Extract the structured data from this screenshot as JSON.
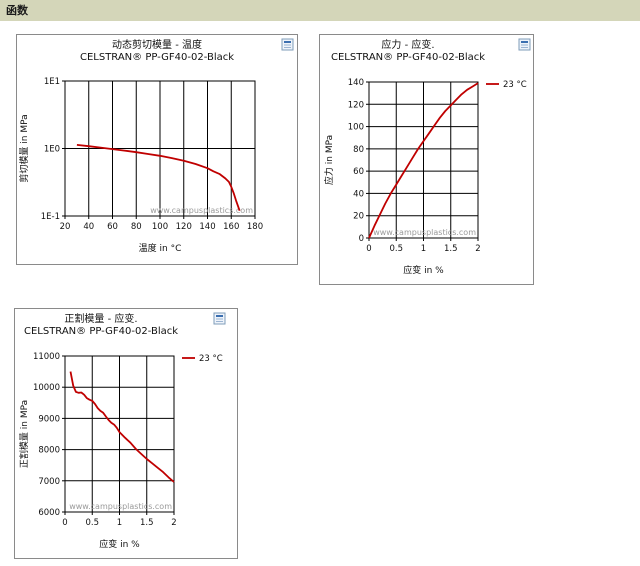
{
  "section": {
    "title": "函数"
  },
  "icon_name": "chart-export-icon",
  "watermark": "www.campusplastics.com",
  "chart_data": [
    {
      "type": "line",
      "title": "动态剪切模量 - 温度",
      "subtitle": "CELSTRAN® PP-GF40-02-Black",
      "xlabel": "温度 in °C",
      "ylabel": "剪切模量 in MPa",
      "yscale": "log",
      "xlim": [
        20,
        180
      ],
      "ylim": [
        0.1,
        10
      ],
      "x_ticks": [
        "20",
        "40",
        "60",
        "80",
        "100",
        "120",
        "140",
        "160",
        "180"
      ],
      "y_ticks": [
        "1E-1",
        "1E0",
        "1E1"
      ],
      "grid": true,
      "legend": "none",
      "series": [
        {
          "color": "#c00000",
          "x": [
            30,
            40,
            50,
            60,
            70,
            80,
            90,
            100,
            110,
            120,
            130,
            140,
            145,
            150,
            155,
            158,
            160,
            162,
            164,
            166,
            167
          ],
          "y": [
            1.13,
            1.08,
            1.03,
            0.98,
            0.93,
            0.88,
            0.83,
            0.78,
            0.72,
            0.66,
            0.59,
            0.51,
            0.46,
            0.42,
            0.36,
            0.32,
            0.27,
            0.22,
            0.17,
            0.135,
            0.12
          ]
        }
      ]
    },
    {
      "type": "line",
      "title": "应力 - 应变.",
      "subtitle": "CELSTRAN® PP-GF40-02-Black",
      "xlabel": "应变 in %",
      "ylabel": "应力 in MPa",
      "xlim": [
        0,
        2
      ],
      "ylim": [
        0,
        140
      ],
      "x_ticks": [
        "0",
        "0.5",
        "1",
        "1.5",
        "2"
      ],
      "y_ticks": [
        "0",
        "20",
        "40",
        "60",
        "80",
        "100",
        "120",
        "140"
      ],
      "grid": true,
      "legend": "right",
      "series": [
        {
          "name": "23 °C",
          "color": "#c00000",
          "x": [
            0,
            0.1,
            0.2,
            0.3,
            0.4,
            0.5,
            0.6,
            0.7,
            0.8,
            0.9,
            1.0,
            1.1,
            1.2,
            1.3,
            1.4,
            1.5,
            1.6,
            1.7,
            1.8,
            1.9,
            2.0
          ],
          "y": [
            0,
            11,
            21,
            31,
            40,
            48,
            56,
            64,
            72,
            80,
            87,
            94,
            101,
            108,
            114,
            119,
            124,
            129,
            133,
            136,
            139
          ]
        }
      ]
    },
    {
      "type": "line",
      "title": "正割模量 - 应变.",
      "subtitle": "CELSTRAN® PP-GF40-02-Black",
      "xlabel": "应变 in %",
      "ylabel": "正割模量 in MPa",
      "xlim": [
        0,
        2
      ],
      "ylim": [
        6000,
        11000
      ],
      "x_ticks": [
        "0",
        "0.5",
        "1",
        "1.5",
        "2"
      ],
      "y_ticks": [
        "6000",
        "7000",
        "8000",
        "9000",
        "10000",
        "11000"
      ],
      "grid": true,
      "legend": "right",
      "series": [
        {
          "name": "23 °C",
          "color": "#c00000",
          "x": [
            0.1,
            0.15,
            0.2,
            0.25,
            0.3,
            0.35,
            0.4,
            0.45,
            0.5,
            0.55,
            0.6,
            0.65,
            0.7,
            0.75,
            0.8,
            0.85,
            0.9,
            0.95,
            1.0,
            1.1,
            1.2,
            1.3,
            1.4,
            1.5,
            1.6,
            1.7,
            1.8,
            1.9,
            2.0
          ],
          "y": [
            10500,
            10050,
            9850,
            9820,
            9830,
            9760,
            9650,
            9600,
            9560,
            9460,
            9330,
            9240,
            9180,
            9060,
            8950,
            8860,
            8800,
            8700,
            8560,
            8380,
            8220,
            8020,
            7860,
            7700,
            7560,
            7420,
            7280,
            7110,
            6960
          ]
        }
      ]
    }
  ]
}
